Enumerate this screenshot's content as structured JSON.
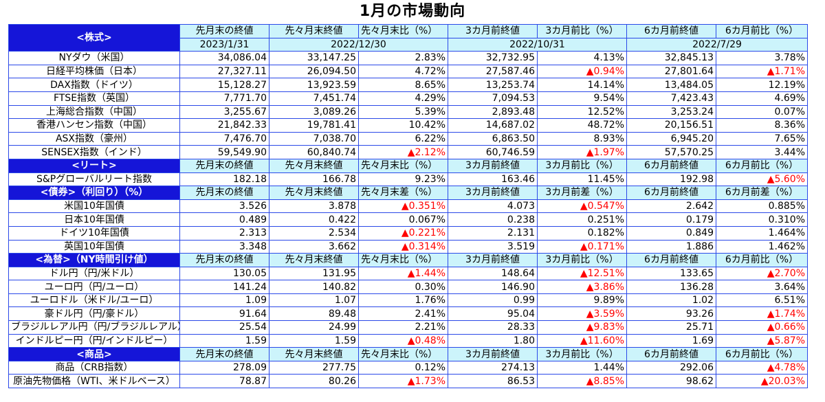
{
  "title": "1月の市場動向",
  "colors": {
    "section_bg": "#1515d8",
    "header_bg": "#ccf4fb",
    "border": "#2a48e8",
    "negative": "#ff0000"
  },
  "date_row": {
    "c1": "2023/1/31",
    "c2": "2022/12/30",
    "c3": "2022/10/31",
    "c4": "2022/7/29"
  },
  "sections": [
    {
      "label": "<株式>",
      "headers": [
        "先月末の終値",
        "先々月末終値",
        "先々月末比（%）",
        "3カ月前終値",
        "3カ月前比（%）",
        "6カ月前終値",
        "6カ月前比（%）"
      ],
      "rows": [
        {
          "name": "NYダウ（米国）",
          "v": [
            "34,086.04",
            "33,147.25",
            "2.83%",
            "32,732.95",
            "4.13%",
            "32,845.13",
            "3.78%"
          ]
        },
        {
          "name": "日経平均株価（日本）",
          "v": [
            "27,327.11",
            "26,094.50",
            "4.72%",
            "27,587.46",
            "▲0.94%",
            "27,801.64",
            "▲1.71%"
          ]
        },
        {
          "name": "DAX指数（ドイツ）",
          "v": [
            "15,128.27",
            "13,923.59",
            "8.65%",
            "13,253.74",
            "14.14%",
            "13,484.05",
            "12.19%"
          ]
        },
        {
          "name": "FTSE指数（英国）",
          "v": [
            "7,771.70",
            "7,451.74",
            "4.29%",
            "7,094.53",
            "9.54%",
            "7,423.43",
            "4.69%"
          ]
        },
        {
          "name": "上海総合指数（中国）",
          "v": [
            "3,255.67",
            "3,089.26",
            "5.39%",
            "2,893.48",
            "12.52%",
            "3,253.24",
            "0.07%"
          ]
        },
        {
          "name": "香港ハンセン指数（中国）",
          "v": [
            "21,842.33",
            "19,781.41",
            "10.42%",
            "14,687.02",
            "48.72%",
            "20,156.51",
            "8.36%"
          ]
        },
        {
          "name": "ASX指数（豪州）",
          "v": [
            "7,476.70",
            "7,038.70",
            "6.22%",
            "6,863.50",
            "8.93%",
            "6,945.20",
            "7.65%"
          ]
        },
        {
          "name": "SENSEX指数（インド）",
          "v": [
            "59,549.90",
            "60,840.74",
            "▲2.12%",
            "60,746.59",
            "▲1.97%",
            "57,570.25",
            "3.44%"
          ]
        }
      ]
    },
    {
      "label": "<リート>",
      "headers": [
        "先月末の終値",
        "先々月末終値",
        "先々月末比（%）",
        "3カ月前終値",
        "3カ月前比（%）",
        "6カ月前終値",
        "6カ月前比（%）"
      ],
      "rows": [
        {
          "name": "S&Pグローバルリート指数",
          "v": [
            "182.18",
            "166.78",
            "9.23%",
            "163.46",
            "11.45%",
            "192.98",
            "▲5.60%"
          ]
        }
      ]
    },
    {
      "label": "<債券>（利回り）（%）",
      "headers": [
        "先月末の終値",
        "先々月末終値",
        "先々月末差（%）",
        "3カ月前終値",
        "3カ月前差（%）",
        "6カ月前終値",
        "6カ月前差（%）"
      ],
      "rows": [
        {
          "name": "米国10年国債",
          "v": [
            "3.526",
            "3.878",
            "▲0.351%",
            "4.073",
            "▲0.547%",
            "2.642",
            "0.885%"
          ]
        },
        {
          "name": "日本10年国債",
          "v": [
            "0.489",
            "0.422",
            "0.067%",
            "0.238",
            "0.251%",
            "0.179",
            "0.310%"
          ]
        },
        {
          "name": "ドイツ10年国債",
          "v": [
            "2.313",
            "2.534",
            "▲0.221%",
            "2.131",
            "0.182%",
            "0.849",
            "1.464%"
          ]
        },
        {
          "name": "英国10年国債",
          "v": [
            "3.348",
            "3.662",
            "▲0.314%",
            "3.519",
            "▲0.171%",
            "1.886",
            "1.462%"
          ]
        }
      ]
    },
    {
      "label": "<為替>（NY時間引け値）",
      "headers": [
        "先月末の終値",
        "先々月末終値",
        "先々月末比（%）",
        "3カ月前終値",
        "3カ月前比（%）",
        "6カ月前終値",
        "6カ月前比（%）"
      ],
      "rows": [
        {
          "name": "ドル円（円/米ドル）",
          "v": [
            "130.05",
            "131.95",
            "▲1.44%",
            "148.64",
            "▲12.51%",
            "133.65",
            "▲2.70%"
          ]
        },
        {
          "name": "ユーロ円（円/ユーロ）",
          "v": [
            "141.24",
            "140.82",
            "0.30%",
            "146.90",
            "▲3.86%",
            "136.28",
            "3.64%"
          ]
        },
        {
          "name": "ユーロドル（米ドル/ユーロ）",
          "v": [
            "1.09",
            "1.07",
            "1.76%",
            "0.99",
            "9.89%",
            "1.02",
            "6.51%"
          ]
        },
        {
          "name": "豪ドル円（円/豪ドル）",
          "v": [
            "91.64",
            "89.48",
            "2.41%",
            "95.04",
            "▲3.59%",
            "93.26",
            "▲1.74%"
          ]
        },
        {
          "name": "ブラジルレアル円（円/ブラジルレアル）",
          "v": [
            "25.54",
            "24.99",
            "2.21%",
            "28.33",
            "▲9.83%",
            "25.71",
            "▲0.66%"
          ]
        },
        {
          "name": "インドルピー円（円/インドルピー）",
          "v": [
            "1.59",
            "1.59",
            "▲0.48%",
            "1.80",
            "▲11.60%",
            "1.69",
            "▲5.87%"
          ]
        }
      ]
    },
    {
      "label": "<商品>",
      "headers": [
        "先月末の終値",
        "先々月末終値",
        "先々月末比（%）",
        "3カ月前終値",
        "3カ月前比（%）",
        "6カ月前終値",
        "6カ月前比（%）"
      ],
      "rows": [
        {
          "name": "商品（CRB指数）",
          "v": [
            "278.09",
            "277.75",
            "0.12%",
            "274.13",
            "1.44%",
            "292.06",
            "▲4.78%"
          ]
        },
        {
          "name": "原油先物価格（WTI、米ドルベース）",
          "v": [
            "78.87",
            "80.26",
            "▲1.73%",
            "86.53",
            "▲8.85%",
            "98.62",
            "▲20.03%"
          ]
        }
      ]
    }
  ]
}
